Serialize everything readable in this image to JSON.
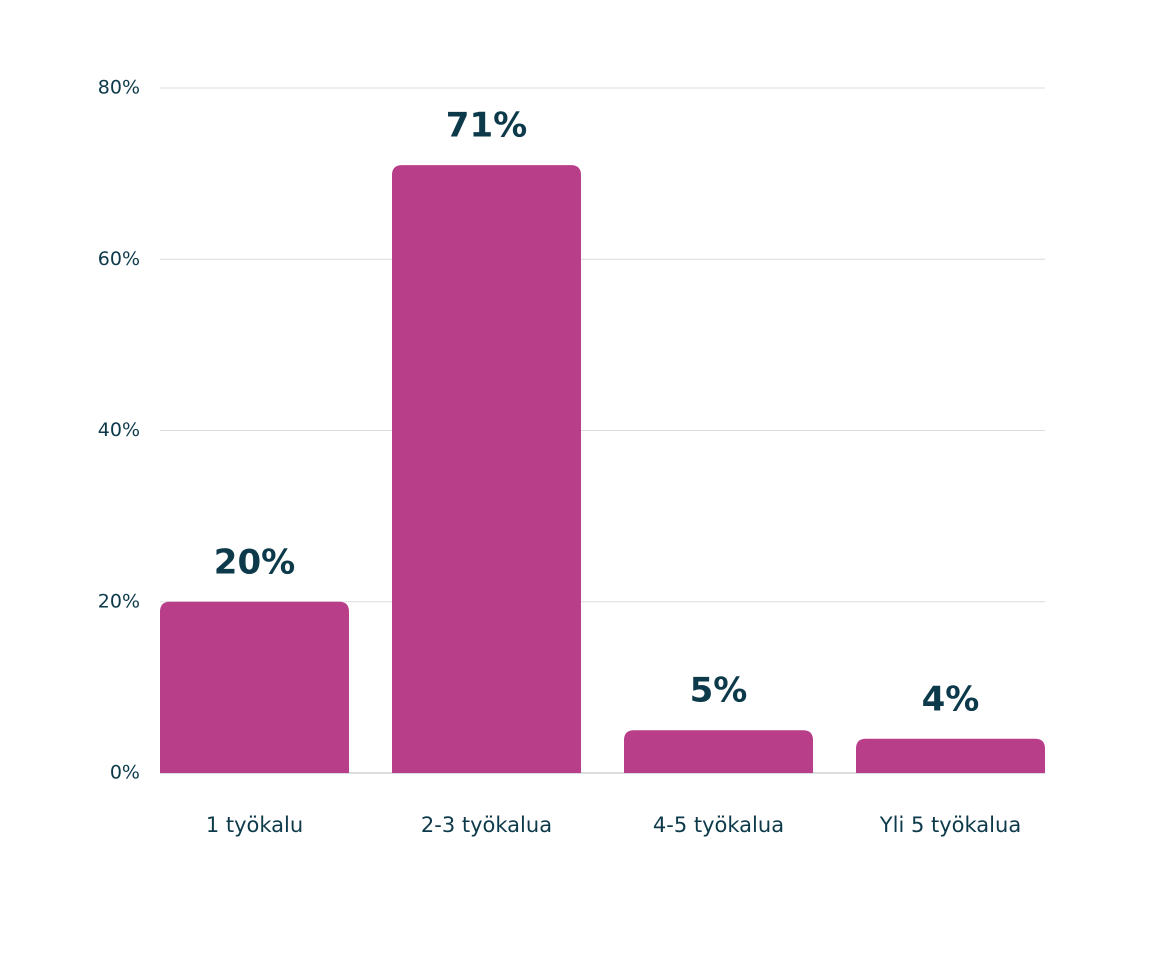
{
  "chart_data": {
    "type": "bar",
    "categories": [
      "1 työkalu",
      "2-3 työkalua",
      "4-5 työkalua",
      "Yli 5 työkalua"
    ],
    "values": [
      20,
      71,
      5,
      4
    ],
    "value_labels": [
      "20%",
      "71%",
      "5%",
      "4%"
    ],
    "color": "#b83e8a",
    "ylim": [
      0,
      80
    ],
    "yticks": [
      {
        "value": 0,
        "label": "0%"
      },
      {
        "value": 20,
        "label": "20%"
      },
      {
        "value": 40,
        "label": "40%"
      },
      {
        "value": 60,
        "label": "60%"
      },
      {
        "value": 80,
        "label": "80%"
      }
    ],
    "grid": true
  }
}
